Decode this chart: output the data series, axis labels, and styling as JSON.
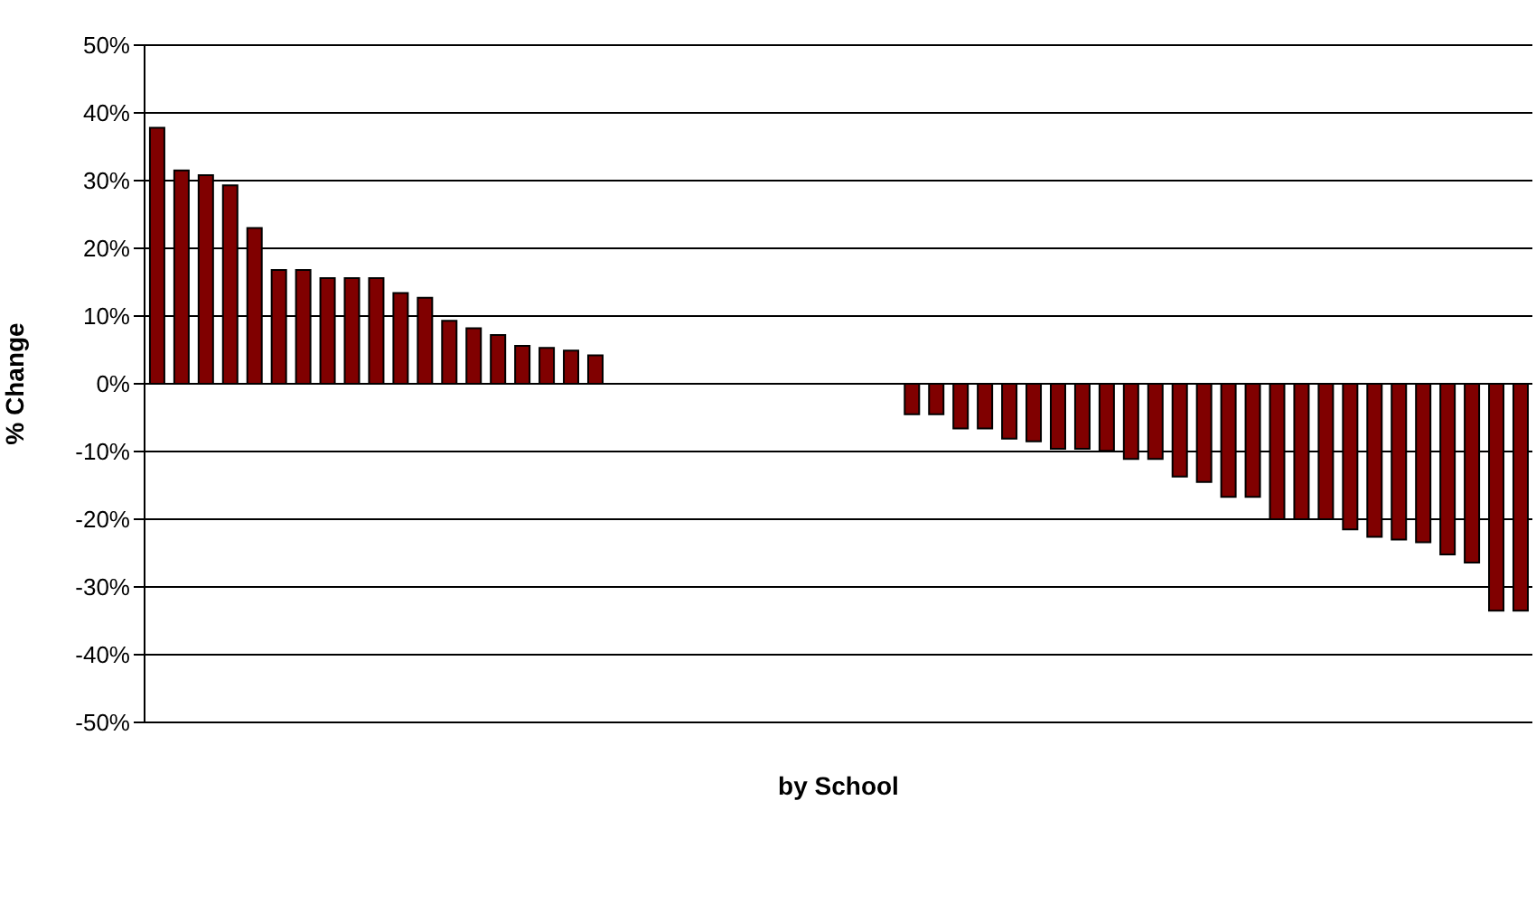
{
  "chart_data": {
    "type": "bar",
    "xlabel": "by School",
    "ylabel": "% Change",
    "categories": [
      null,
      null,
      null,
      null,
      null,
      null,
      null,
      null,
      null,
      null,
      null,
      null,
      null,
      null,
      null,
      null,
      null,
      null,
      null,
      null,
      null,
      null,
      null,
      null,
      null,
      null,
      null,
      null,
      null,
      null,
      null,
      null,
      null,
      null,
      null,
      null,
      null,
      null,
      null,
      null,
      null,
      null,
      null,
      null,
      null,
      null,
      null,
      null,
      null,
      null,
      null,
      null,
      null,
      null,
      null,
      null,
      null
    ],
    "values": [
      37.8,
      31.5,
      30.8,
      29.3,
      23.0,
      16.8,
      16.8,
      15.6,
      15.6,
      15.6,
      13.4,
      12.7,
      9.3,
      8.2,
      7.2,
      5.6,
      5.3,
      4.9,
      4.2,
      null,
      null,
      null,
      null,
      null,
      null,
      null,
      null,
      null,
      null,
      null,
      null,
      -4.5,
      -4.5,
      -6.6,
      -6.6,
      -8.1,
      -8.5,
      -9.6,
      -9.6,
      -9.9,
      -11.1,
      -11.1,
      -13.7,
      -14.5,
      -16.7,
      -16.7,
      -20.0,
      -20.0,
      -20.0,
      -21.5,
      -22.6,
      -23.0,
      -23.4,
      -25.2,
      -26.4,
      -33.5,
      -33.5
    ],
    "color": "#800000",
    "ylim": [
      -50,
      50
    ],
    "yticks": [
      {
        "value": -50,
        "label": "-50%"
      },
      {
        "value": -40,
        "label": "-40%"
      },
      {
        "value": -30,
        "label": "-30%"
      },
      {
        "value": -20,
        "label": "-20%"
      },
      {
        "value": -10,
        "label": "-10%"
      },
      {
        "value": 0,
        "label": "0%"
      },
      {
        "value": 10,
        "label": "10%"
      },
      {
        "value": 20,
        "label": "20%"
      },
      {
        "value": 30,
        "label": "30%"
      },
      {
        "value": 40,
        "label": "40%"
      },
      {
        "value": 50,
        "label": "50%"
      }
    ],
    "grid": "y",
    "tick_labels": "y"
  }
}
